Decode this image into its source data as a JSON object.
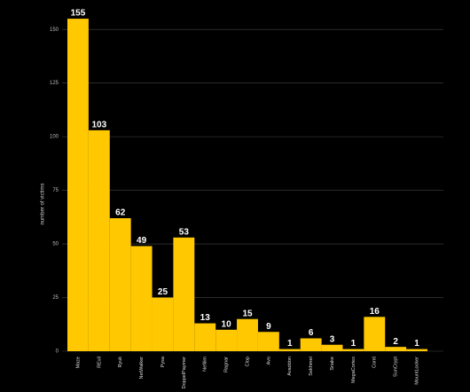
{
  "chart_data": {
    "type": "bar",
    "y_label": "number of victims",
    "categories": [
      "Maze",
      "REvil",
      "Ryuk",
      "NetWalker",
      "Pysa",
      "DoppelPaymer",
      "Nefilim",
      "Ragnar",
      "Clop",
      "Avo",
      "Avaddon",
      "Sekhmet",
      "Snake",
      "MegaCortex",
      "Conti",
      "SunCrypt",
      "MountLocker"
    ],
    "values": [
      155,
      103,
      62,
      49,
      25,
      53,
      13,
      10,
      15,
      9,
      1,
      6,
      3,
      1,
      16,
      2,
      1
    ],
    "color": "#ffc800",
    "ylim": [
      0,
      160
    ],
    "yticks": [
      0,
      25,
      50,
      75,
      100,
      125,
      150
    ],
    "grid": true
  }
}
